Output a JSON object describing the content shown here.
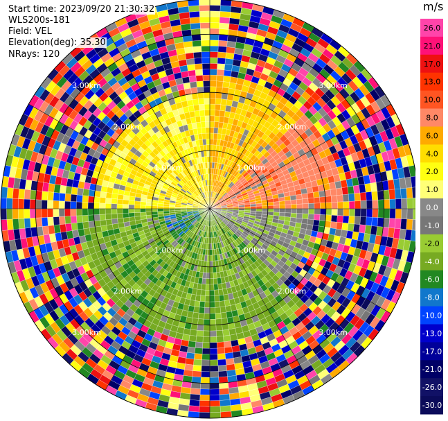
{
  "header": {
    "start_time": "Start time: 2023/09/20 21:30:32",
    "instrument": "WLS200s-181",
    "field": "Field: VEL",
    "elevation": "Elevation(deg): 35.30",
    "nrays": "NRays: 120"
  },
  "colorbar": {
    "unit": "m/s",
    "ticks": [
      "26.0",
      "21.0",
      "17.0",
      "13.0",
      "10.0",
      "8.0",
      "6.0",
      "4.0",
      "2.0",
      "1.0",
      "0.0",
      "-1.0",
      "-2.0",
      "-4.0",
      "-6.0",
      "-8.0",
      "-10.0",
      "-13.0",
      "-17.0",
      "-21.0",
      "-26.0",
      "-30.0"
    ],
    "colors": [
      "#ff44aa",
      "#ff1177",
      "#ee1111",
      "#ff3300",
      "#ff5522",
      "#ff8866",
      "#ffaa00",
      "#ffdd00",
      "#ffff11",
      "#ffff77",
      "#888888",
      "#777777",
      "#99cc33",
      "#77aa22",
      "#228822",
      "#1177cc",
      "#0044ff",
      "#0000cc",
      "#000099",
      "#000066",
      "#111166",
      "#0b0b5a"
    ]
  },
  "chart_data": {
    "type": "ppi",
    "field": "VEL",
    "units": "m/s",
    "n_rays": 120,
    "elevation_deg": 35.3,
    "range_rings_km": [
      1.0,
      2.0,
      3.0
    ],
    "ring_labels": [
      "1.00km",
      "2.00km",
      "3.00km"
    ],
    "max_range_km": 3.6,
    "sectors": [
      {
        "az_from": 0,
        "az_to": 45,
        "range_km": [
          0,
          2.3
        ],
        "velocity_ms": 4.0
      },
      {
        "az_from": 45,
        "az_to": 90,
        "range_km": [
          0,
          2.3
        ],
        "velocity_ms": 7.0
      },
      {
        "az_from": 270,
        "az_to": 360,
        "range_km": [
          0,
          2.0
        ],
        "velocity_ms": 2.0
      },
      {
        "az_from": 90,
        "az_to": 135,
        "range_km": [
          0,
          1.8
        ],
        "velocity_ms": -1.5
      },
      {
        "az_from": 135,
        "az_to": 270,
        "range_km": [
          0,
          2.3
        ],
        "velocity_ms": -5.0
      },
      {
        "az_from": 225,
        "az_to": 260,
        "range_km": [
          0.2,
          0.8
        ],
        "velocity_ms": -9.0
      }
    ],
    "noise_beyond_km": 2.4
  }
}
